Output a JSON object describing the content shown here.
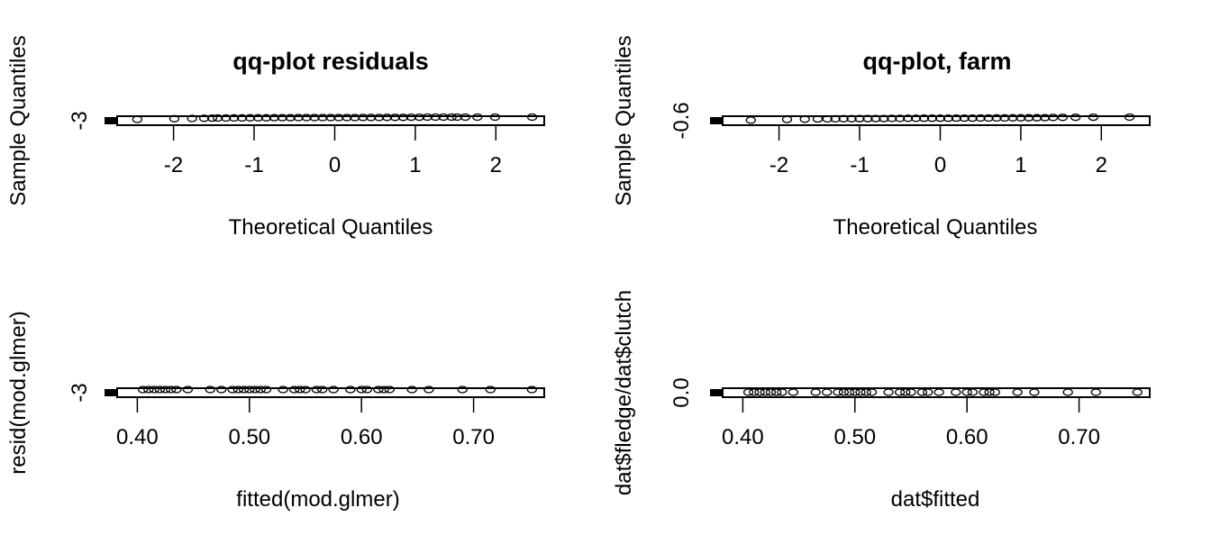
{
  "chart_data": [
    {
      "type": "scatter",
      "title": "qq-plot residuals",
      "xlabel": "Theoretical Quantiles",
      "ylabel": "Sample Quantiles",
      "xticks": [
        -2,
        -1,
        0,
        1,
        2
      ],
      "xtick_labels": [
        "-2",
        "-1",
        "0",
        "1",
        "2"
      ],
      "yticks": [
        -3
      ],
      "ytick_labels": [
        "-3"
      ],
      "xlim": [
        -2.7,
        2.6
      ],
      "ylim": [
        -3.4,
        0.6
      ],
      "points": [
        {
          "x": -2.45,
          "y": -0.8
        },
        {
          "x": -1.99,
          "y": -0.5
        },
        {
          "x": -1.77,
          "y": -0.4
        },
        {
          "x": -1.62,
          "y": -0.3
        },
        {
          "x": -1.52,
          "y": -0.25
        },
        {
          "x": -1.45,
          "y": -0.2
        },
        {
          "x": -1.35,
          "y": -0.2
        },
        {
          "x": -1.25,
          "y": -0.15
        },
        {
          "x": -1.15,
          "y": -0.15
        },
        {
          "x": -1.05,
          "y": -0.1
        },
        {
          "x": -0.95,
          "y": -0.1
        },
        {
          "x": -0.85,
          "y": -0.1
        },
        {
          "x": -0.75,
          "y": -0.05
        },
        {
          "x": -0.65,
          "y": -0.05
        },
        {
          "x": -0.55,
          "y": -0.05
        },
        {
          "x": -0.45,
          "y": 0.0
        },
        {
          "x": -0.35,
          "y": 0.0
        },
        {
          "x": -0.25,
          "y": 0.0
        },
        {
          "x": -0.15,
          "y": 0.0
        },
        {
          "x": -0.05,
          "y": 0.0
        },
        {
          "x": 0.05,
          "y": 0.0
        },
        {
          "x": 0.15,
          "y": 0.0
        },
        {
          "x": 0.25,
          "y": 0.0
        },
        {
          "x": 0.35,
          "y": 0.05
        },
        {
          "x": 0.45,
          "y": 0.05
        },
        {
          "x": 0.55,
          "y": 0.05
        },
        {
          "x": 0.65,
          "y": 0.1
        },
        {
          "x": 0.75,
          "y": 0.1
        },
        {
          "x": 0.85,
          "y": 0.1
        },
        {
          "x": 0.95,
          "y": 0.15
        },
        {
          "x": 1.05,
          "y": 0.15
        },
        {
          "x": 1.15,
          "y": 0.2
        },
        {
          "x": 1.25,
          "y": 0.2
        },
        {
          "x": 1.35,
          "y": 0.25
        },
        {
          "x": 1.45,
          "y": 0.3
        },
        {
          "x": 1.52,
          "y": 0.3
        },
        {
          "x": 1.62,
          "y": 0.35
        },
        {
          "x": 1.77,
          "y": 0.4
        },
        {
          "x": 1.99,
          "y": 0.45
        },
        {
          "x": 2.45,
          "y": 0.5
        }
      ]
    },
    {
      "type": "scatter",
      "title": "qq-plot, farm",
      "xlabel": "Theoretical Quantiles",
      "ylabel": "Sample Quantiles",
      "xticks": [
        -2,
        -1,
        0,
        1,
        2
      ],
      "xtick_labels": [
        "-2",
        "-1",
        "0",
        "1",
        "2"
      ],
      "yticks": [
        -0.6
      ],
      "ytick_labels": [
        "-0.6"
      ],
      "xlim": [
        -2.7,
        2.6
      ],
      "ylim": [
        -0.7,
        0.2
      ],
      "points": [
        {
          "x": -2.35,
          "y": -0.2
        },
        {
          "x": -1.9,
          "y": -0.12
        },
        {
          "x": -1.68,
          "y": -0.1
        },
        {
          "x": -1.52,
          "y": -0.08
        },
        {
          "x": -1.4,
          "y": -0.07
        },
        {
          "x": -1.3,
          "y": -0.06
        },
        {
          "x": -1.2,
          "y": -0.05
        },
        {
          "x": -1.1,
          "y": -0.05
        },
        {
          "x": -1.0,
          "y": -0.04
        },
        {
          "x": -0.9,
          "y": -0.04
        },
        {
          "x": -0.8,
          "y": -0.03
        },
        {
          "x": -0.7,
          "y": -0.03
        },
        {
          "x": -0.6,
          "y": -0.02
        },
        {
          "x": -0.5,
          "y": -0.02
        },
        {
          "x": -0.4,
          "y": -0.01
        },
        {
          "x": -0.3,
          "y": -0.01
        },
        {
          "x": -0.2,
          "y": 0.0
        },
        {
          "x": -0.1,
          "y": 0.0
        },
        {
          "x": 0.0,
          "y": 0.0
        },
        {
          "x": 0.1,
          "y": 0.0
        },
        {
          "x": 0.2,
          "y": 0.01
        },
        {
          "x": 0.3,
          "y": 0.01
        },
        {
          "x": 0.4,
          "y": 0.01
        },
        {
          "x": 0.5,
          "y": 0.02
        },
        {
          "x": 0.6,
          "y": 0.02
        },
        {
          "x": 0.7,
          "y": 0.03
        },
        {
          "x": 0.8,
          "y": 0.03
        },
        {
          "x": 0.9,
          "y": 0.04
        },
        {
          "x": 1.0,
          "y": 0.04
        },
        {
          "x": 1.1,
          "y": 0.05
        },
        {
          "x": 1.2,
          "y": 0.05
        },
        {
          "x": 1.3,
          "y": 0.06
        },
        {
          "x": 1.4,
          "y": 0.07
        },
        {
          "x": 1.52,
          "y": 0.08
        },
        {
          "x": 1.68,
          "y": 0.09
        },
        {
          "x": 1.9,
          "y": 0.1
        },
        {
          "x": 2.35,
          "y": 0.12
        }
      ]
    },
    {
      "type": "scatter",
      "title": "",
      "xlabel": "fitted(mod.glmer)",
      "ylabel": "resid(mod.glmer)",
      "xticks": [
        0.4,
        0.5,
        0.6,
        0.7
      ],
      "xtick_labels": [
        "0.40",
        "0.50",
        "0.60",
        "0.70"
      ],
      "yticks": [
        -3
      ],
      "ytick_labels": [
        "-3"
      ],
      "xlim": [
        0.382,
        0.763
      ],
      "ylim": [
        -3.4,
        0.6
      ],
      "points": [
        {
          "x": 0.405,
          "y": 0.0
        },
        {
          "x": 0.41,
          "y": 0.0
        },
        {
          "x": 0.415,
          "y": 0.0
        },
        {
          "x": 0.42,
          "y": 0.0
        },
        {
          "x": 0.425,
          "y": 0.0
        },
        {
          "x": 0.43,
          "y": 0.0
        },
        {
          "x": 0.435,
          "y": 0.0
        },
        {
          "x": 0.445,
          "y": 0.0
        },
        {
          "x": 0.465,
          "y": 0.0
        },
        {
          "x": 0.475,
          "y": 0.0
        },
        {
          "x": 0.485,
          "y": 0.0
        },
        {
          "x": 0.49,
          "y": 0.0
        },
        {
          "x": 0.495,
          "y": 0.0
        },
        {
          "x": 0.5,
          "y": 0.0
        },
        {
          "x": 0.505,
          "y": 0.0
        },
        {
          "x": 0.51,
          "y": 0.0
        },
        {
          "x": 0.515,
          "y": 0.0
        },
        {
          "x": 0.53,
          "y": 0.0
        },
        {
          "x": 0.54,
          "y": 0.0
        },
        {
          "x": 0.545,
          "y": 0.0
        },
        {
          "x": 0.55,
          "y": 0.0
        },
        {
          "x": 0.56,
          "y": 0.0
        },
        {
          "x": 0.565,
          "y": 0.0
        },
        {
          "x": 0.575,
          "y": 0.0
        },
        {
          "x": 0.59,
          "y": 0.0
        },
        {
          "x": 0.6,
          "y": 0.0
        },
        {
          "x": 0.605,
          "y": 0.0
        },
        {
          "x": 0.615,
          "y": 0.0
        },
        {
          "x": 0.62,
          "y": 0.0
        },
        {
          "x": 0.625,
          "y": 0.0
        },
        {
          "x": 0.645,
          "y": 0.0
        },
        {
          "x": 0.66,
          "y": 0.0
        },
        {
          "x": 0.69,
          "y": 0.0
        },
        {
          "x": 0.715,
          "y": 0.0
        },
        {
          "x": 0.752,
          "y": 0.0
        }
      ]
    },
    {
      "type": "scatter",
      "title": "",
      "xlabel": "dat$fitted",
      "ylabel": "dat$fledge/dat$clutch",
      "xticks": [
        0.4,
        0.5,
        0.6,
        0.7
      ],
      "xtick_labels": [
        "0.40",
        "0.50",
        "0.60",
        "0.70"
      ],
      "yticks": [
        0.0
      ],
      "ytick_labels": [
        "0.0"
      ],
      "xlim": [
        0.382,
        0.763
      ],
      "ylim": [
        -0.1,
        1.0
      ],
      "points": [
        {
          "x": 0.405,
          "y": 0.5
        },
        {
          "x": 0.41,
          "y": 0.5
        },
        {
          "x": 0.415,
          "y": 0.5
        },
        {
          "x": 0.42,
          "y": 0.5
        },
        {
          "x": 0.425,
          "y": 0.5
        },
        {
          "x": 0.43,
          "y": 0.5
        },
        {
          "x": 0.435,
          "y": 0.5
        },
        {
          "x": 0.445,
          "y": 0.5
        },
        {
          "x": 0.465,
          "y": 0.5
        },
        {
          "x": 0.475,
          "y": 0.5
        },
        {
          "x": 0.485,
          "y": 0.5
        },
        {
          "x": 0.49,
          "y": 0.5
        },
        {
          "x": 0.495,
          "y": 0.5
        },
        {
          "x": 0.5,
          "y": 0.5
        },
        {
          "x": 0.505,
          "y": 0.5
        },
        {
          "x": 0.51,
          "y": 0.5
        },
        {
          "x": 0.515,
          "y": 0.5
        },
        {
          "x": 0.53,
          "y": 0.5
        },
        {
          "x": 0.54,
          "y": 0.5
        },
        {
          "x": 0.545,
          "y": 0.5
        },
        {
          "x": 0.55,
          "y": 0.5
        },
        {
          "x": 0.56,
          "y": 0.5
        },
        {
          "x": 0.565,
          "y": 0.5
        },
        {
          "x": 0.575,
          "y": 0.5
        },
        {
          "x": 0.59,
          "y": 0.5
        },
        {
          "x": 0.6,
          "y": 0.5
        },
        {
          "x": 0.605,
          "y": 0.5
        },
        {
          "x": 0.615,
          "y": 0.5
        },
        {
          "x": 0.62,
          "y": 0.5
        },
        {
          "x": 0.625,
          "y": 0.5
        },
        {
          "x": 0.645,
          "y": 0.5
        },
        {
          "x": 0.66,
          "y": 0.5
        },
        {
          "x": 0.69,
          "y": 0.5
        },
        {
          "x": 0.715,
          "y": 0.5
        },
        {
          "x": 0.752,
          "y": 0.5
        }
      ]
    }
  ]
}
